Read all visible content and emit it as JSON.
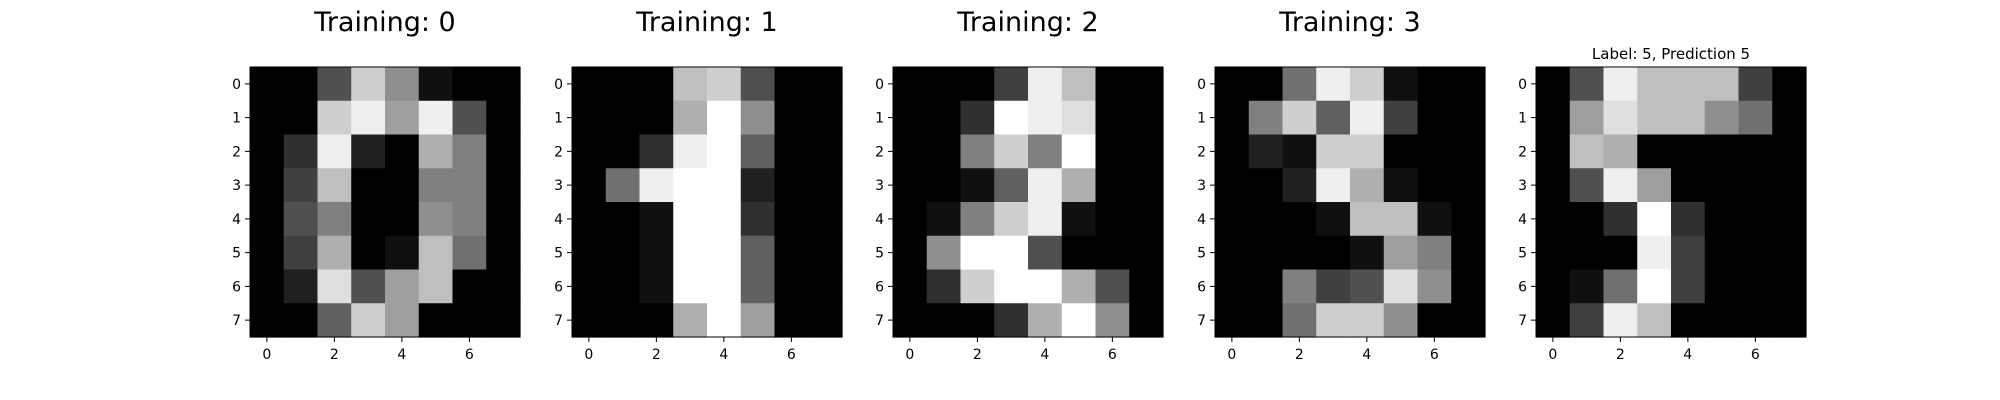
{
  "chart_data": [
    {
      "type": "heatmap",
      "title": "Training: 0",
      "colormap": "gray",
      "vmin": 0,
      "vmax": 16,
      "xticks": [
        0,
        2,
        4,
        6
      ],
      "yticks": [
        0,
        1,
        2,
        3,
        4,
        5,
        6,
        7
      ],
      "grid": false,
      "values": [
        [
          0,
          0,
          5,
          13,
          9,
          1,
          0,
          0
        ],
        [
          0,
          0,
          13,
          15,
          10,
          15,
          5,
          0
        ],
        [
          0,
          3,
          15,
          2,
          0,
          11,
          8,
          0
        ],
        [
          0,
          4,
          12,
          0,
          0,
          8,
          8,
          0
        ],
        [
          0,
          5,
          8,
          0,
          0,
          9,
          8,
          0
        ],
        [
          0,
          4,
          11,
          0,
          1,
          12,
          7,
          0
        ],
        [
          0,
          2,
          14,
          5,
          10,
          12,
          0,
          0
        ],
        [
          0,
          0,
          6,
          13,
          10,
          0,
          0,
          0
        ]
      ]
    },
    {
      "type": "heatmap",
      "title": "Training: 1",
      "colormap": "gray",
      "vmin": 0,
      "vmax": 16,
      "xticks": [
        0,
        2,
        4,
        6
      ],
      "yticks": [
        0,
        1,
        2,
        3,
        4,
        5,
        6,
        7
      ],
      "grid": false,
      "values": [
        [
          0,
          0,
          0,
          12,
          13,
          5,
          0,
          0
        ],
        [
          0,
          0,
          0,
          11,
          16,
          9,
          0,
          0
        ],
        [
          0,
          0,
          3,
          15,
          16,
          6,
          0,
          0
        ],
        [
          0,
          7,
          15,
          16,
          16,
          2,
          0,
          0
        ],
        [
          0,
          0,
          1,
          16,
          16,
          3,
          0,
          0
        ],
        [
          0,
          0,
          1,
          16,
          16,
          6,
          0,
          0
        ],
        [
          0,
          0,
          1,
          16,
          16,
          6,
          0,
          0
        ],
        [
          0,
          0,
          0,
          11,
          16,
          10,
          0,
          0
        ]
      ]
    },
    {
      "type": "heatmap",
      "title": "Training: 2",
      "colormap": "gray",
      "vmin": 0,
      "vmax": 16,
      "xticks": [
        0,
        2,
        4,
        6
      ],
      "yticks": [
        0,
        1,
        2,
        3,
        4,
        5,
        6,
        7
      ],
      "grid": false,
      "values": [
        [
          0,
          0,
          0,
          4,
          15,
          12,
          0,
          0
        ],
        [
          0,
          0,
          3,
          16,
          15,
          14,
          0,
          0
        ],
        [
          0,
          0,
          8,
          13,
          8,
          16,
          0,
          0
        ],
        [
          0,
          0,
          1,
          6,
          15,
          11,
          0,
          0
        ],
        [
          0,
          1,
          8,
          13,
          15,
          1,
          0,
          0
        ],
        [
          0,
          9,
          16,
          16,
          5,
          0,
          0,
          0
        ],
        [
          0,
          3,
          13,
          16,
          16,
          11,
          5,
          0
        ],
        [
          0,
          0,
          0,
          3,
          11,
          16,
          9,
          0
        ]
      ]
    },
    {
      "type": "heatmap",
      "title": "Training: 3",
      "colormap": "gray",
      "vmin": 0,
      "vmax": 16,
      "xticks": [
        0,
        2,
        4,
        6
      ],
      "yticks": [
        0,
        1,
        2,
        3,
        4,
        5,
        6,
        7
      ],
      "grid": false,
      "values": [
        [
          0,
          0,
          7,
          15,
          13,
          1,
          0,
          0
        ],
        [
          0,
          8,
          13,
          6,
          15,
          4,
          0,
          0
        ],
        [
          0,
          2,
          1,
          13,
          13,
          0,
          0,
          0
        ],
        [
          0,
          0,
          2,
          15,
          11,
          1,
          0,
          0
        ],
        [
          0,
          0,
          0,
          1,
          12,
          12,
          1,
          0
        ],
        [
          0,
          0,
          0,
          0,
          1,
          10,
          8,
          0
        ],
        [
          0,
          0,
          8,
          4,
          5,
          14,
          9,
          0
        ],
        [
          0,
          0,
          7,
          13,
          13,
          9,
          0,
          0
        ]
      ]
    },
    {
      "type": "heatmap",
      "title": "Label: 5, Prediction 5",
      "colormap": "gray",
      "vmin": 0,
      "vmax": 16,
      "xticks": [
        0,
        2,
        4,
        6
      ],
      "yticks": [
        0,
        1,
        2,
        3,
        4,
        5,
        6,
        7
      ],
      "grid": false,
      "values": [
        [
          0,
          5,
          15,
          12,
          12,
          12,
          4,
          0
        ],
        [
          0,
          10,
          14,
          12,
          12,
          9,
          7,
          0
        ],
        [
          0,
          12,
          11,
          0,
          0,
          0,
          0,
          0
        ],
        [
          0,
          5,
          15,
          10,
          0,
          0,
          0,
          0
        ],
        [
          0,
          0,
          3,
          16,
          3,
          0,
          0,
          0
        ],
        [
          0,
          0,
          0,
          15,
          4,
          0,
          0,
          0
        ],
        [
          0,
          1,
          7,
          16,
          4,
          0,
          0,
          0
        ],
        [
          0,
          4,
          15,
          12,
          0,
          0,
          0,
          0
        ]
      ]
    }
  ]
}
